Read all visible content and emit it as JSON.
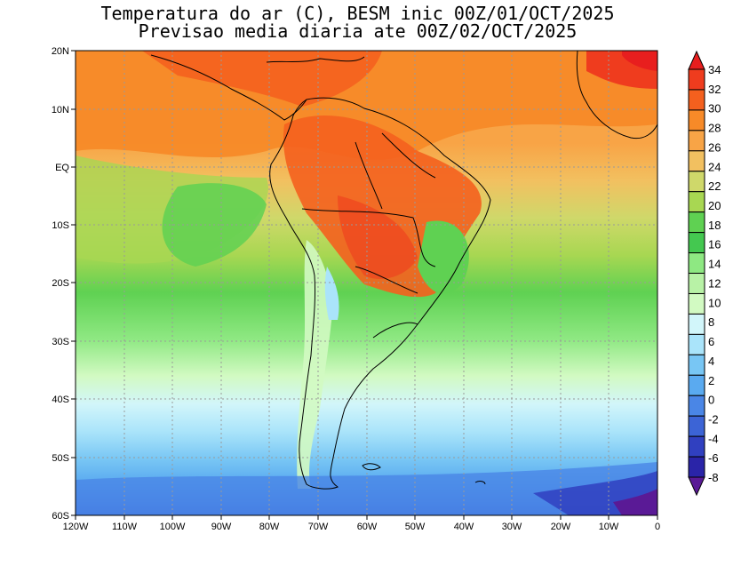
{
  "title": {
    "line1": "Temperatura do ar (C), BESM inic 00Z/01/OCT/2025",
    "line2": "Previsao media diaria ate 00Z/02/OCT/2025"
  },
  "map": {
    "lat_labels": [
      "20N",
      "10N",
      "EQ",
      "10S",
      "20S",
      "30S",
      "40S",
      "50S",
      "60S"
    ],
    "lon_labels": [
      "120W",
      "110W",
      "100W",
      "90W",
      "80W",
      "70W",
      "60W",
      "50W",
      "40W",
      "30W",
      "20W",
      "10W",
      "0"
    ]
  },
  "colorbar": {
    "labels": [
      "34",
      "32",
      "30",
      "28",
      "26",
      "24",
      "22",
      "20",
      "18",
      "16",
      "14",
      "12",
      "10",
      "8",
      "6",
      "4",
      "2",
      "0",
      "-2",
      "-4",
      "-6",
      "-8"
    ],
    "colors": [
      "#e81e1e",
      "#ef3c1e",
      "#f4601e",
      "#f78a28",
      "#f8a446",
      "#f2c060",
      "#cfd86a",
      "#a8d752",
      "#5fd152",
      "#44c850",
      "#8ee882",
      "#b8f2a6",
      "#d2fac2",
      "#d2f6fa",
      "#aae4fa",
      "#78c6f4",
      "#5aaaf0",
      "#4a86e6",
      "#3c64d6",
      "#3040c0",
      "#2a24a8",
      "#5a1a96"
    ]
  }
}
